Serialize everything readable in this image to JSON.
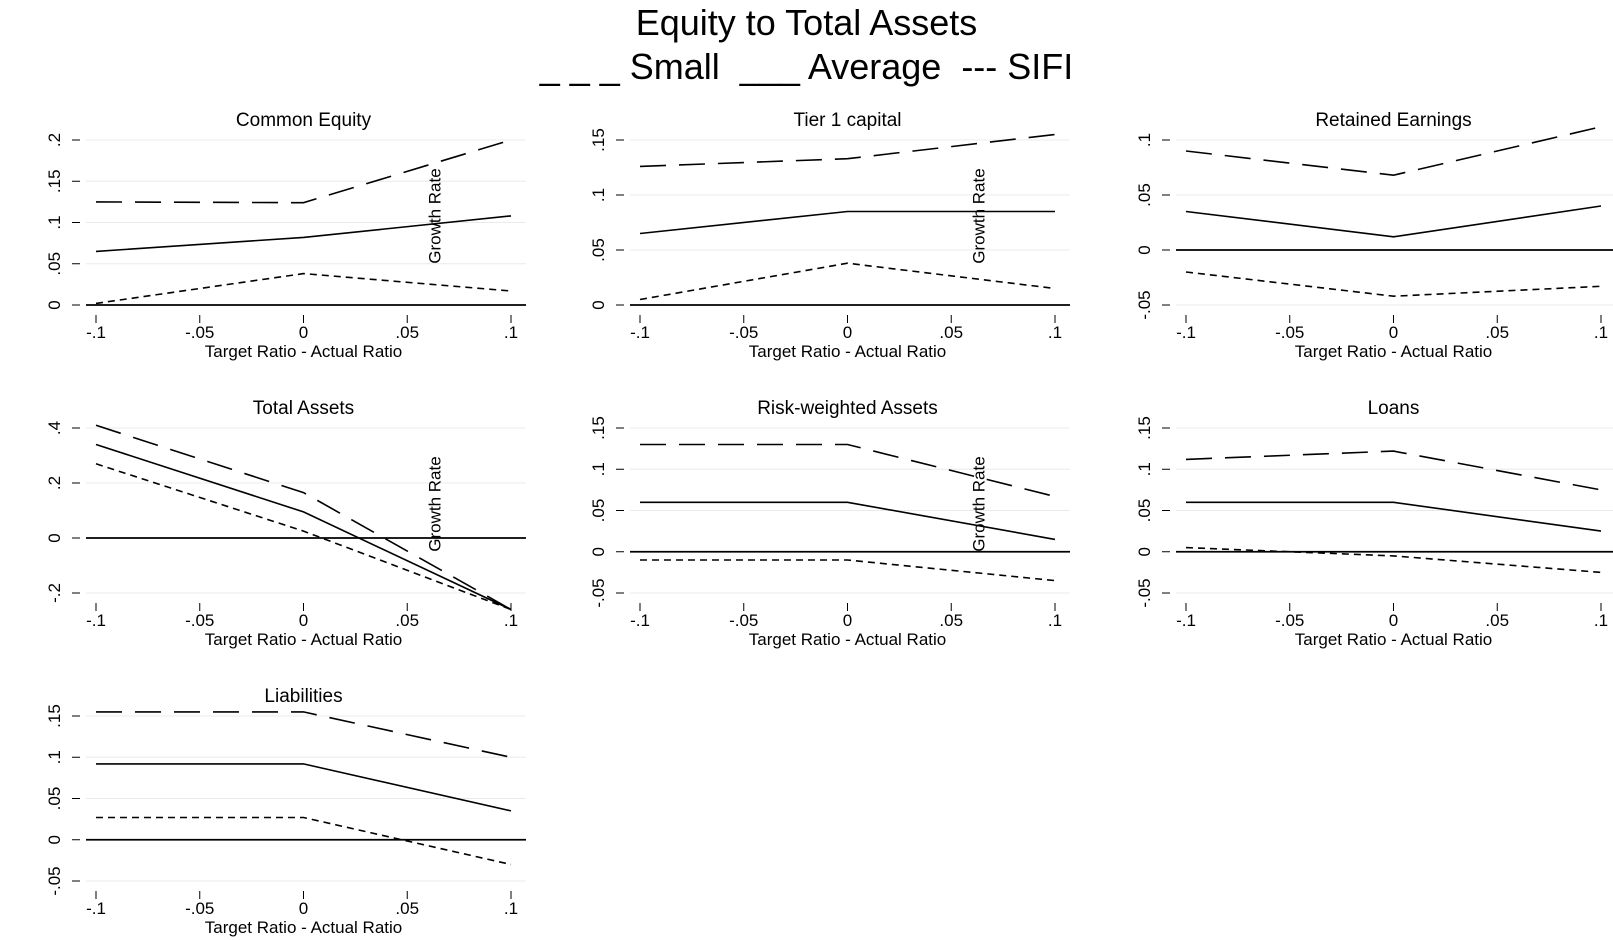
{
  "figure": {
    "title": "Equity to Total Assets",
    "legend_text": "_ _ _ Small  ___ Average  --- SIFI",
    "annotation": "Growth Rate",
    "xlabel": "Target Ratio - Actual Ratio"
  },
  "chart_data": [
    {
      "type": "line",
      "title": "Common Equity",
      "xlabel": "Target Ratio - Actual Ratio",
      "ylabel": "",
      "x": [
        -0.1,
        0,
        0.1
      ],
      "xticks": [
        -0.1,
        -0.05,
        0,
        0.05,
        0.1
      ],
      "xtick_labels": [
        "-.1",
        "-.05",
        "0",
        ".05",
        ".1"
      ],
      "ylim": [
        0,
        0.2
      ],
      "yticks": [
        0,
        0.05,
        0.1,
        0.15,
        0.2
      ],
      "ytick_labels": [
        "0",
        ".05",
        ".1",
        ".15",
        ".2"
      ],
      "annotation": "Growth Rate",
      "series": [
        {
          "values": [
            0.125,
            0.124,
            0.2
          ],
          "style": "long-dash"
        },
        {
          "values": [
            0.065,
            0.082,
            0.108
          ],
          "style": "solid"
        },
        {
          "values": [
            0.002,
            0.038,
            0.017
          ],
          "style": "short-dash"
        }
      ]
    },
    {
      "type": "line",
      "title": "Tier 1 capital",
      "xlabel": "Target Ratio - Actual Ratio",
      "ylabel": "",
      "x": [
        -0.1,
        0,
        0.1
      ],
      "xticks": [
        -0.1,
        -0.05,
        0,
        0.05,
        0.1
      ],
      "xtick_labels": [
        "-.1",
        "-.05",
        "0",
        ".05",
        ".1"
      ],
      "ylim": [
        0,
        0.15
      ],
      "yticks": [
        0,
        0.05,
        0.1,
        0.15
      ],
      "ytick_labels": [
        "0",
        ".05",
        ".1",
        ".15"
      ],
      "annotation": "Growth Rate",
      "series": [
        {
          "values": [
            0.126,
            0.133,
            0.155
          ],
          "style": "long-dash"
        },
        {
          "values": [
            0.065,
            0.085,
            0.085
          ],
          "style": "solid"
        },
        {
          "values": [
            0.005,
            0.038,
            0.015
          ],
          "style": "short-dash"
        }
      ]
    },
    {
      "type": "line",
      "title": "Retained Earnings",
      "xlabel": "Target Ratio - Actual Ratio",
      "ylabel": "",
      "x": [
        -0.1,
        0,
        0.1
      ],
      "xticks": [
        -0.1,
        -0.05,
        0,
        0.05,
        0.1
      ],
      "xtick_labels": [
        "-.1",
        "-.05",
        "0",
        ".05",
        ".1"
      ],
      "ylim": [
        -0.05,
        0.1
      ],
      "yticks": [
        -0.05,
        0,
        0.05,
        0.1
      ],
      "ytick_labels": [
        "-.05",
        "0",
        ".05",
        ".1"
      ],
      "series": [
        {
          "values": [
            0.09,
            0.068,
            0.112
          ],
          "style": "long-dash"
        },
        {
          "values": [
            0.035,
            0.012,
            0.04
          ],
          "style": "solid"
        },
        {
          "values": [
            -0.02,
            -0.042,
            -0.033
          ],
          "style": "short-dash"
        }
      ]
    },
    {
      "type": "line",
      "title": "Total Assets",
      "xlabel": "Target Ratio - Actual Ratio",
      "ylabel": "",
      "x": [
        -0.1,
        0,
        0.1
      ],
      "xticks": [
        -0.1,
        -0.05,
        0,
        0.05,
        0.1
      ],
      "xtick_labels": [
        "-.1",
        "-.05",
        "0",
        ".05",
        ".1"
      ],
      "ylim": [
        -0.2,
        0.4
      ],
      "yticks": [
        -0.2,
        0,
        0.2,
        0.4
      ],
      "ytick_labels": [
        "-.2",
        "0",
        ".2",
        ".4"
      ],
      "annotation": "Growth Rate",
      "series": [
        {
          "values": [
            0.41,
            0.165,
            -0.26
          ],
          "style": "long-dash"
        },
        {
          "values": [
            0.34,
            0.095,
            -0.26
          ],
          "style": "solid"
        },
        {
          "values": [
            0.27,
            0.025,
            -0.26
          ],
          "style": "short-dash"
        }
      ]
    },
    {
      "type": "line",
      "title": "Risk-weighted Assets",
      "xlabel": "Target Ratio - Actual Ratio",
      "ylabel": "",
      "x": [
        -0.1,
        0,
        0.1
      ],
      "xticks": [
        -0.1,
        -0.05,
        0,
        0.05,
        0.1
      ],
      "xtick_labels": [
        "-.1",
        "-.05",
        "0",
        ".05",
        ".1"
      ],
      "ylim": [
        -0.05,
        0.15
      ],
      "yticks": [
        -0.05,
        0,
        0.05,
        0.1,
        0.15
      ],
      "ytick_labels": [
        "-.05",
        "0",
        ".05",
        ".1",
        ".15"
      ],
      "annotation": "Growth Rate",
      "series": [
        {
          "values": [
            0.13,
            0.13,
            0.067
          ],
          "style": "long-dash"
        },
        {
          "values": [
            0.06,
            0.06,
            0.015
          ],
          "style": "solid"
        },
        {
          "values": [
            -0.01,
            -0.01,
            -0.035
          ],
          "style": "short-dash"
        }
      ]
    },
    {
      "type": "line",
      "title": "Loans",
      "xlabel": "Target Ratio - Actual Ratio",
      "ylabel": "",
      "x": [
        -0.1,
        0,
        0.1
      ],
      "xticks": [
        -0.1,
        -0.05,
        0,
        0.05,
        0.1
      ],
      "xtick_labels": [
        "-.1",
        "-.05",
        "0",
        ".05",
        ".1"
      ],
      "ylim": [
        -0.05,
        0.15
      ],
      "yticks": [
        -0.05,
        0,
        0.05,
        0.1,
        0.15
      ],
      "ytick_labels": [
        "-.05",
        "0",
        ".05",
        ".1",
        ".15"
      ],
      "series": [
        {
          "values": [
            0.112,
            0.122,
            0.075
          ],
          "style": "long-dash"
        },
        {
          "values": [
            0.06,
            0.06,
            0.025
          ],
          "style": "solid"
        },
        {
          "values": [
            0.005,
            -0.005,
            -0.025
          ],
          "style": "short-dash"
        }
      ]
    },
    {
      "type": "line",
      "title": "Liabilities",
      "xlabel": "Target Ratio - Actual Ratio",
      "ylabel": "",
      "x": [
        -0.1,
        0,
        0.1
      ],
      "xticks": [
        -0.1,
        -0.05,
        0,
        0.05,
        0.1
      ],
      "xtick_labels": [
        "-.1",
        "-.05",
        "0",
        ".05",
        ".1"
      ],
      "ylim": [
        -0.05,
        0.15
      ],
      "yticks": [
        -0.05,
        0,
        0.05,
        0.1,
        0.15
      ],
      "ytick_labels": [
        "-.05",
        "0",
        ".05",
        ".1",
        ".15"
      ],
      "series": [
        {
          "values": [
            0.155,
            0.155,
            0.1
          ],
          "style": "long-dash"
        },
        {
          "values": [
            0.092,
            0.092,
            0.035
          ],
          "style": "solid"
        },
        {
          "values": [
            0.027,
            0.027,
            -0.03
          ],
          "style": "short-dash"
        }
      ]
    }
  ]
}
